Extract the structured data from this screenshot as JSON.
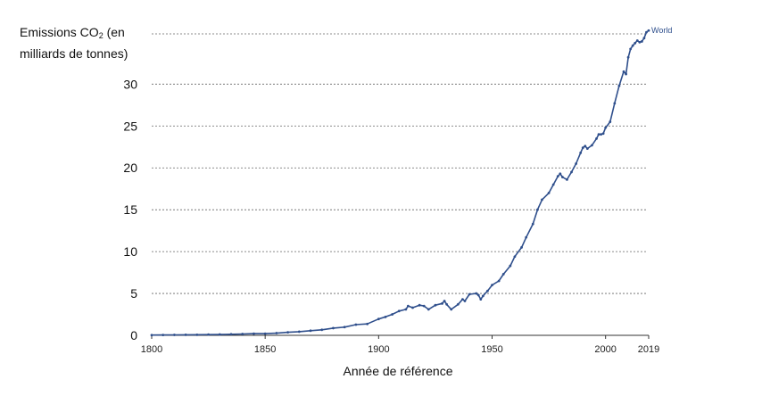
{
  "chart_data": {
    "type": "line",
    "title": "",
    "ylabel_prefix": "Emissions CO",
    "ylabel_sub": "2",
    "ylabel_rest": " (en",
    "ylabel_line2": "milliards de tonnes)",
    "xlabel": "Année de référence",
    "xlim": [
      1800,
      2019
    ],
    "ylim": [
      0,
      36
    ],
    "yticks": [
      0,
      5,
      10,
      15,
      20,
      25,
      30
    ],
    "xticks": [
      1800,
      1850,
      1900,
      1950,
      2000,
      2019
    ],
    "grid": "horizontal-dashed",
    "color": "#2f4f8c",
    "series": [
      {
        "name": "World",
        "x": [
          1800,
          1805,
          1810,
          1815,
          1820,
          1825,
          1830,
          1835,
          1840,
          1845,
          1850,
          1855,
          1860,
          1865,
          1870,
          1875,
          1880,
          1885,
          1890,
          1895,
          1900,
          1903,
          1906,
          1909,
          1912,
          1913,
          1915,
          1918,
          1920,
          1922,
          1925,
          1928,
          1929,
          1930,
          1932,
          1935,
          1937,
          1938,
          1940,
          1943,
          1944,
          1945,
          1946,
          1948,
          1950,
          1953,
          1955,
          1958,
          1960,
          1963,
          1965,
          1968,
          1970,
          1972,
          1975,
          1977,
          1979,
          1980,
          1981,
          1983,
          1985,
          1987,
          1989,
          1990,
          1991,
          1992,
          1994,
          1996,
          1997,
          1998,
          1999,
          2000,
          2002,
          2004,
          2006,
          2008,
          2009,
          2010,
          2011,
          2012,
          2013,
          2014,
          2015,
          2016,
          2017,
          2018,
          2019
        ],
        "values": [
          0.03,
          0.04,
          0.05,
          0.06,
          0.07,
          0.09,
          0.1,
          0.13,
          0.16,
          0.2,
          0.2,
          0.26,
          0.36,
          0.44,
          0.55,
          0.66,
          0.86,
          0.98,
          1.28,
          1.36,
          1.95,
          2.2,
          2.5,
          2.9,
          3.1,
          3.5,
          3.3,
          3.6,
          3.5,
          3.1,
          3.6,
          3.8,
          4.1,
          3.7,
          3.1,
          3.7,
          4.3,
          4.1,
          4.9,
          5.0,
          4.8,
          4.3,
          4.7,
          5.3,
          6.0,
          6.5,
          7.3,
          8.3,
          9.4,
          10.5,
          11.7,
          13.3,
          15.0,
          16.2,
          17.0,
          18.0,
          19.0,
          19.3,
          18.9,
          18.6,
          19.5,
          20.5,
          21.8,
          22.4,
          22.6,
          22.3,
          22.7,
          23.5,
          24.0,
          24.0,
          24.1,
          24.8,
          25.5,
          27.7,
          29.8,
          31.5,
          31.2,
          33.2,
          34.2,
          34.6,
          34.9,
          35.2,
          35.0,
          35.1,
          35.5,
          36.2,
          36.4
        ]
      }
    ]
  }
}
